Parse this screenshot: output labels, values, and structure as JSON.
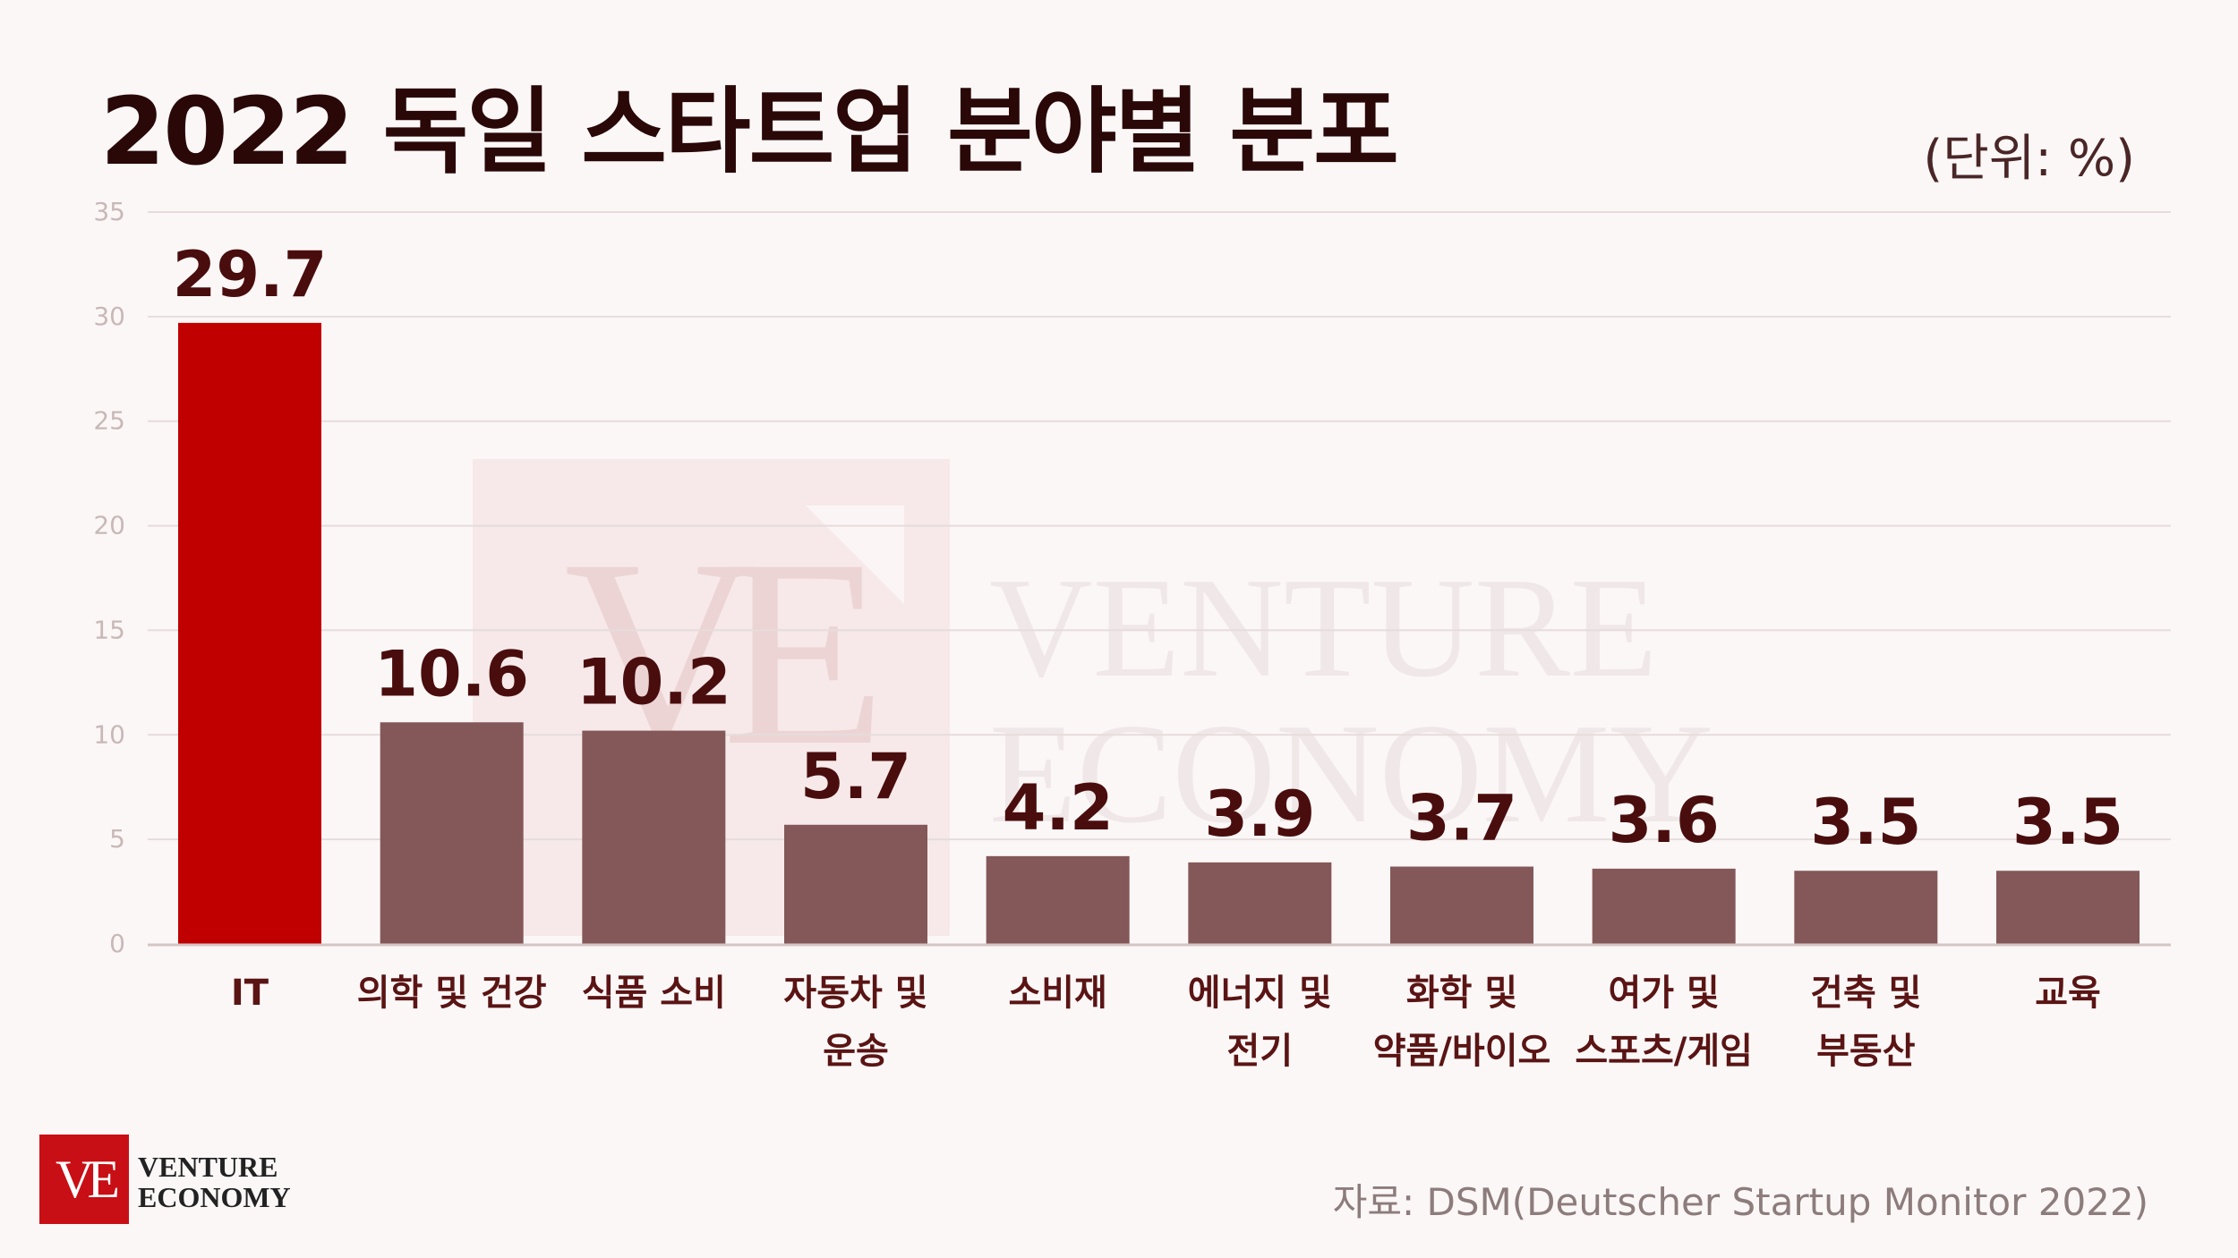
{
  "header": {
    "title": "2022 독일 스타트업 분야별 분포",
    "unit": "(단위: %)"
  },
  "source": "자료: DSM(Deutscher Startup Monitor 2022)",
  "watermark": {
    "line1": "VENTURE",
    "line2": "ECONOMY",
    "mark": "VE"
  },
  "logo": {
    "mark": "VE",
    "line1": "VENTURE",
    "line2": "ECONOMY"
  },
  "colors": {
    "highlight_bar": "#c00000",
    "bar": "#845858",
    "value_label": "#4a0d0d",
    "category_label": "#5a1414",
    "grid": "#e6dcdc",
    "tick": "#c9b8b8"
  },
  "chart_data": {
    "type": "bar",
    "title": "2022 독일 스타트업 분야별 분포",
    "unit": "%",
    "categories": [
      [
        "IT"
      ],
      [
        "의학 및 건강"
      ],
      [
        "식품 소비"
      ],
      [
        "자동차 및",
        "운송"
      ],
      [
        "소비재"
      ],
      [
        "에너지 및",
        "전기"
      ],
      [
        "화학 및",
        "약품/바이오"
      ],
      [
        "여가 및",
        "스포츠/게임"
      ],
      [
        "건축 및",
        "부동산"
      ],
      [
        "교육"
      ]
    ],
    "values": [
      29.7,
      10.6,
      10.2,
      5.7,
      4.2,
      3.9,
      3.7,
      3.6,
      3.5,
      3.5
    ],
    "value_labels": [
      "29.7",
      "10.6",
      "10.2",
      "5.7",
      "4.2",
      "3.9",
      "3.7",
      "3.6",
      "3.5",
      "3.5"
    ],
    "highlight_index": 0,
    "ylim": [
      0,
      35
    ],
    "yticks": [
      0,
      5,
      10,
      15,
      20,
      25,
      30,
      35
    ],
    "grid": true,
    "legend": "none"
  }
}
